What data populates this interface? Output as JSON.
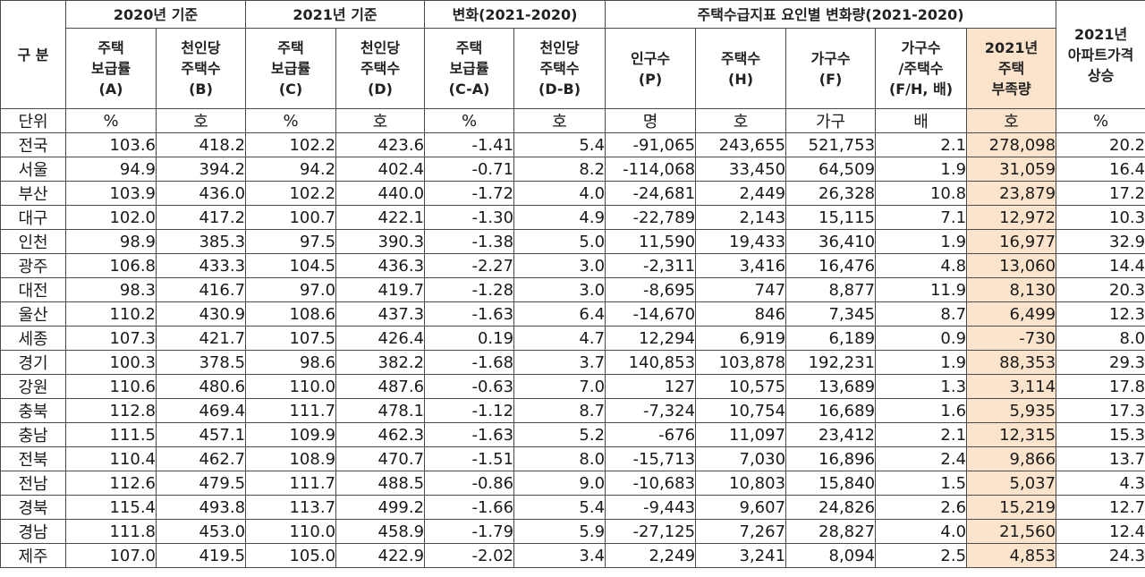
{
  "header": {
    "region": "구 분",
    "groups": [
      "2020년 기준",
      "2021년 기준",
      "변화(2021-2020)",
      "주택수급지표 요인별 변화량(2021-2020)"
    ],
    "last_group": "2021년\n아파트가격\n상승",
    "columns": [
      "주택\n보급률\n(A)",
      "천인당\n주택수\n(B)",
      "주택\n보급률\n(C)",
      "천인당\n주택수\n(D)",
      "주택\n보급률\n(C-A)",
      "천인당\n주택수\n(D-B)",
      "인구수\n(P)",
      "주택수\n(H)",
      "가구수\n(F)",
      "가구수\n/주택수\n(F/H, 배)",
      "2021년\n주택\n부족량"
    ]
  },
  "units": [
    "단위",
    "%",
    "호",
    "%",
    "호",
    "%",
    "호",
    "명",
    "호",
    "가구",
    "배",
    "호",
    "%"
  ],
  "rows": [
    [
      "전국",
      "103.6",
      "418.2",
      "102.2",
      "423.6",
      "-1.41",
      "5.4",
      "-91,065",
      "243,655",
      "521,753",
      "2.1",
      "278,098",
      "20.2"
    ],
    [
      "서울",
      "94.9",
      "394.2",
      "94.2",
      "402.4",
      "-0.71",
      "8.2",
      "-114,068",
      "33,450",
      "64,509",
      "1.9",
      "31,059",
      "16.4"
    ],
    [
      "부산",
      "103.9",
      "436.0",
      "102.2",
      "440.0",
      "-1.72",
      "4.0",
      "-24,681",
      "2,449",
      "26,328",
      "10.8",
      "23,879",
      "17.2"
    ],
    [
      "대구",
      "102.0",
      "417.2",
      "100.7",
      "422.1",
      "-1.30",
      "4.9",
      "-22,789",
      "2,143",
      "15,115",
      "7.1",
      "12,972",
      "10.3"
    ],
    [
      "인천",
      "98.9",
      "385.3",
      "97.5",
      "390.3",
      "-1.38",
      "5.0",
      "11,590",
      "19,433",
      "36,410",
      "1.9",
      "16,977",
      "32.9"
    ],
    [
      "광주",
      "106.8",
      "433.3",
      "104.5",
      "436.3",
      "-2.27",
      "3.0",
      "-2,311",
      "3,416",
      "16,476",
      "4.8",
      "13,060",
      "14.4"
    ],
    [
      "대전",
      "98.3",
      "416.7",
      "97.0",
      "419.7",
      "-1.28",
      "3.0",
      "-8,695",
      "747",
      "8,877",
      "11.9",
      "8,130",
      "20.3"
    ],
    [
      "울산",
      "110.2",
      "430.9",
      "108.6",
      "437.3",
      "-1.63",
      "6.4",
      "-14,670",
      "846",
      "7,345",
      "8.7",
      "6,499",
      "12.3"
    ],
    [
      "세종",
      "107.3",
      "421.7",
      "107.5",
      "426.4",
      "0.19",
      "4.7",
      "12,294",
      "6,919",
      "6,189",
      "0.9",
      "-730",
      "8.0"
    ],
    [
      "경기",
      "100.3",
      "378.5",
      "98.6",
      "382.2",
      "-1.68",
      "3.7",
      "140,853",
      "103,878",
      "192,231",
      "1.9",
      "88,353",
      "29.3"
    ],
    [
      "강원",
      "110.6",
      "480.6",
      "110.0",
      "487.6",
      "-0.63",
      "7.0",
      "127",
      "10,575",
      "13,689",
      "1.3",
      "3,114",
      "17.8"
    ],
    [
      "충북",
      "112.8",
      "469.4",
      "111.7",
      "478.1",
      "-1.12",
      "8.7",
      "-7,324",
      "10,754",
      "16,689",
      "1.6",
      "5,935",
      "17.3"
    ],
    [
      "충남",
      "111.5",
      "457.1",
      "109.9",
      "462.3",
      "-1.63",
      "5.2",
      "-676",
      "11,097",
      "23,412",
      "2.1",
      "12,315",
      "15.3"
    ],
    [
      "전북",
      "110.4",
      "462.7",
      "108.9",
      "470.7",
      "-1.51",
      "8.0",
      "-15,713",
      "7,030",
      "16,896",
      "2.4",
      "9,866",
      "13.7"
    ],
    [
      "전남",
      "112.6",
      "479.5",
      "111.7",
      "488.5",
      "-0.86",
      "9.0",
      "-10,683",
      "10,803",
      "15,840",
      "1.5",
      "5,037",
      "4.3"
    ],
    [
      "경북",
      "115.4",
      "493.8",
      "113.7",
      "499.2",
      "-1.66",
      "5.4",
      "-9,443",
      "9,607",
      "24,826",
      "2.6",
      "15,219",
      "12.7"
    ],
    [
      "경남",
      "111.8",
      "453.0",
      "110.0",
      "458.9",
      "-1.79",
      "5.9",
      "-27,125",
      "7,267",
      "28,827",
      "4.0",
      "21,560",
      "12.4"
    ],
    [
      "제주",
      "107.0",
      "419.5",
      "105.0",
      "422.9",
      "-2.02",
      "3.4",
      "2,249",
      "3,241",
      "8,094",
      "2.5",
      "4,853",
      "24.3"
    ]
  ]
}
